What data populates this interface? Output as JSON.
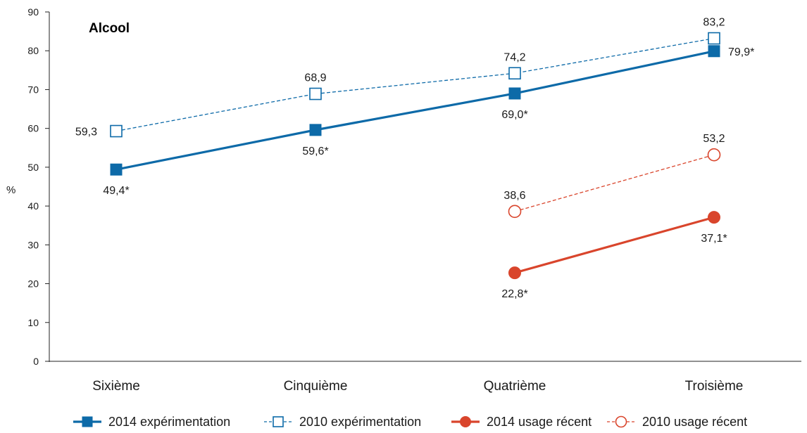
{
  "chart_data": {
    "type": "line",
    "title": "Alcool",
    "ylabel": "%",
    "xlabel": "",
    "ylim": [
      0,
      90
    ],
    "yticks": [
      0,
      10,
      20,
      30,
      40,
      50,
      60,
      70,
      80,
      90
    ],
    "categories": [
      "Sixième",
      "Cinquième",
      "Quatrième",
      "Troisième"
    ],
    "grid": false,
    "legend_position": "bottom",
    "series": [
      {
        "name": "2014 expérimentation",
        "values": [
          49.4,
          59.6,
          69.0,
          79.9
        ],
        "labels": [
          "49,4*",
          "59,6*",
          "69,0*",
          "79,9*"
        ],
        "label_pos": [
          "below",
          "below",
          "below",
          "right"
        ],
        "color": "#0d6aa8",
        "marker": "square",
        "filled": true,
        "dashed": false
      },
      {
        "name": "2010 expérimentation",
        "values": [
          59.3,
          68.9,
          74.2,
          83.2
        ],
        "labels": [
          "59,3",
          "68,9",
          "74,2",
          "83,2"
        ],
        "label_pos": [
          "left",
          "above",
          "above",
          "above"
        ],
        "color": "#0d6aa8",
        "marker": "square",
        "filled": false,
        "dashed": true
      },
      {
        "name": "2014 usage récent",
        "values": [
          null,
          null,
          22.8,
          37.1
        ],
        "labels": [
          null,
          null,
          "22,8*",
          "37,1*"
        ],
        "label_pos": [
          null,
          null,
          "below",
          "below"
        ],
        "color": "#d9452c",
        "marker": "circle",
        "filled": true,
        "dashed": false
      },
      {
        "name": "2010 usage récent",
        "values": [
          null,
          null,
          38.6,
          53.2
        ],
        "labels": [
          null,
          null,
          "38,6",
          "53,2"
        ],
        "label_pos": [
          null,
          null,
          "above",
          "above"
        ],
        "color": "#d9452c",
        "marker": "circle",
        "filled": false,
        "dashed": true
      }
    ]
  }
}
